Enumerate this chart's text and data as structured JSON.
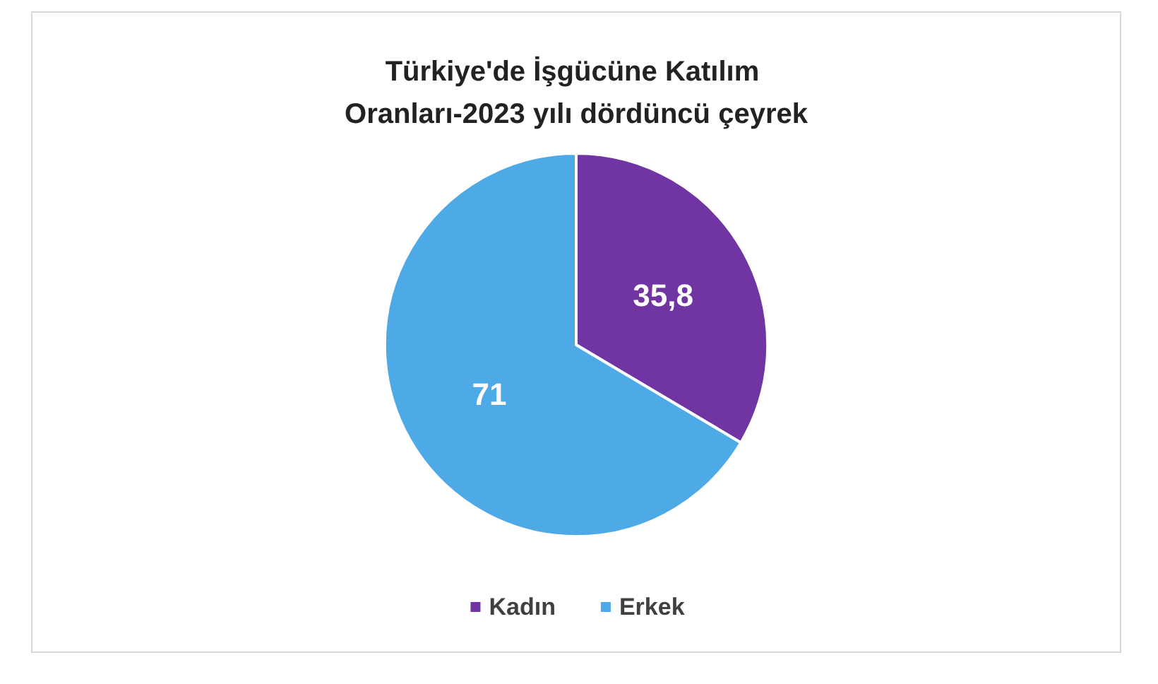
{
  "chart_data": {
    "type": "pie",
    "title": "Türkiye'de İşgücüne Katılım Oranları-2023 yılı dördüncü çeyrek",
    "categories": [
      "Kadın",
      "Erkek"
    ],
    "values": [
      35.8,
      71
    ],
    "value_labels": [
      "35,8",
      "71"
    ],
    "colors": [
      "#7035a2",
      "#4eaae6"
    ],
    "legend": "bottom"
  }
}
